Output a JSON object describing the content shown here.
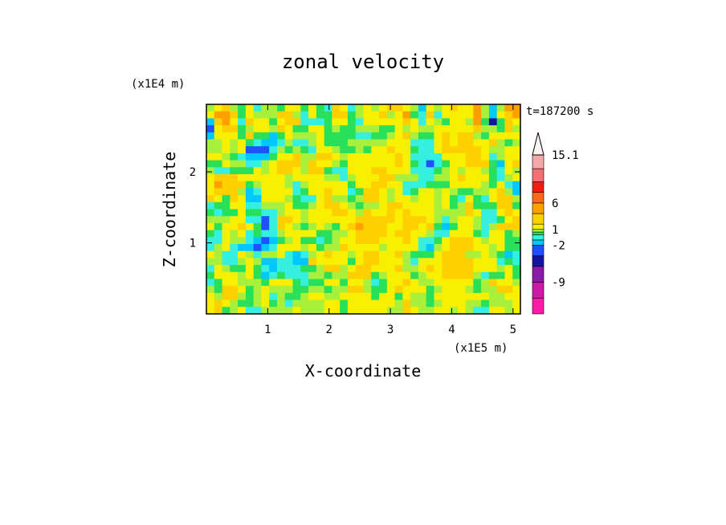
{
  "chart_data": {
    "type": "heatmap",
    "title": "zonal velocity",
    "xlabel": "X-coordinate",
    "ylabel": "Z-coordinate",
    "x_unit": "(x1E5 m)",
    "y_unit": "(x1E4 m)",
    "time_label": "t=187200 s",
    "xlim": [
      0,
      5.12
    ],
    "ylim": [
      0,
      2.95
    ],
    "x_ticks": [
      "1",
      "2",
      "3",
      "4",
      "5"
    ],
    "y_ticks": [
      "1",
      "2"
    ],
    "x_tick_values": [
      1,
      2,
      3,
      4,
      5
    ],
    "y_tick_values": [
      1,
      2
    ],
    "colorbar": {
      "levels": [
        -15,
        -12,
        -9,
        -6,
        -4,
        -2,
        -1,
        0,
        0.5,
        1,
        2,
        4,
        6,
        8,
        10,
        12.5,
        15.1
      ],
      "labels": [
        "15.1",
        "6",
        "1",
        "-2",
        "-9"
      ],
      "label_values": [
        15.1,
        6,
        1,
        -2,
        -9
      ],
      "colors": [
        "#ff1aa8",
        "#cc1aa8",
        "#8c1aa8",
        "#1414a0",
        "#2050ff",
        "#00c8ff",
        "#35f0e0",
        "#28e05a",
        "#a8f03c",
        "#f8f000",
        "#ffd000",
        "#ffa000",
        "#ff6a1a",
        "#ee1e10",
        "#f27070",
        "#f6a7a7"
      ],
      "max_arrow": true
    },
    "z": [
      [
        0.8,
        1.5,
        3.2,
        0.8,
        0.2,
        1.2,
        -0.7,
        0.8,
        0.7,
        0.4,
        1.2,
        1.2,
        0.3,
        1.2,
        0.3,
        -0.6,
        2.9,
        1.3,
        -0.8,
        0.9,
        1.5,
        0.6,
        1.5,
        2.0,
        2.3,
        1.8,
        0.5,
        -1.1,
        1.2,
        0.7,
        1.3,
        2.0,
        1.3,
        1.2,
        4.9,
        0.9,
        -1.9,
        0.5,
        4.0,
        5.1
      ],
      [
        1.4,
        4.1,
        4.6,
        2.1,
        0.1,
        1.8,
        0.8,
        0.8,
        0.6,
        2.1,
        2.1,
        0.9,
        -0.4,
        1.8,
        0.3,
        0.0,
        2.6,
        2.3,
        0.0,
        0.5,
        1.4,
        1.4,
        3.1,
        0.5,
        1.4,
        4.2,
        0.4,
        -0.6,
        2.5,
        -0.4,
        1.7,
        1.7,
        1.7,
        1.4,
        5.6,
        0.5,
        -2.0,
        1.8,
        3.2,
        4.9
      ],
      [
        -1.1,
        2.8,
        5.0,
        1.6,
        -0.1,
        3.0,
        1.5,
        1.4,
        0.4,
        1.5,
        2.3,
        2.2,
        -0.4,
        -0.5,
        -0.1,
        0.1,
        1.6,
        1.1,
        0.4,
        -0.4,
        1.0,
        1.0,
        1.0,
        1.6,
        1.0,
        3.1,
        1.3,
        -0.2,
        1.3,
        0.7,
        0.4,
        1.7,
        1.4,
        0.8,
        4.1,
        0.2,
        -4.2,
        0.2,
        2.0,
        1.9
      ],
      [
        -2.5,
        1.6,
        3.4,
        2.2,
        0.3,
        0.8,
        1.8,
        1.2,
        0.6,
        2.1,
        1.5,
        0.1,
        0.2,
        1.6,
        1.6,
        0.3,
        0.8,
        0.1,
        0.3,
        0.6,
        0.7,
        0.9,
        0.0,
        0.2,
        1.0,
        0.6,
        1.1,
        0.6,
        0.8,
        1.3,
        1.3,
        1.2,
        1.1,
        1.6,
        3.3,
        0.9,
        0.5,
        0.4,
        2.2,
        0.6
      ],
      [
        -1.9,
        1.2,
        1.8,
        1.4,
        0.2,
        2.3,
        0.1,
        0.2,
        -1.1,
        0.1,
        1.7,
        0.8,
        0.9,
        0.9,
        1.3,
        0.2,
        0.1,
        0.3,
        0.2,
        -0.7,
        -0.1,
        0.3,
        0.3,
        0.6,
        1.5,
        2.0,
        0.7,
        0.3,
        0.3,
        1.3,
        2.1,
        1.8,
        2.4,
        2.3,
        0.7,
        0.4,
        1.8,
        1.8,
        1.6,
        1.8
      ],
      [
        0.9,
        0.8,
        1.8,
        0.5,
        1.4,
        0.4,
        -1.0,
        -1.1,
        -1.3,
        -0.9,
        0.8,
        -0.2,
        -0.5,
        0.6,
        1.1,
        0.3,
        0.2,
        0.1,
        0.7,
        0.7,
        0.8,
        0.8,
        0.9,
        1.0,
        1.4,
        1.0,
        -0.1,
        -0.1,
        -0.8,
        1.5,
        3.6,
        1.6,
        3.4,
        2.5,
        1.7,
        1.1,
        2.1,
        0.8,
        0.0,
        0.5
      ],
      [
        0.5,
        0.6,
        1.4,
        0.6,
        1.8,
        -2.2,
        -2.5,
        -2.5,
        -0.3,
        0.7,
        0.4,
        0.9,
        0.4,
        -0.1,
        1.5,
        1.8,
        0.8,
        -0.0,
        0.0,
        0.9,
        0.4,
        1.0,
        1.4,
        2.1,
        1.7,
        1.7,
        0.4,
        -0.1,
        -0.9,
        1.5,
        3.1,
        3.8,
        2.1,
        2.3,
        3.1,
        1.6,
        0.8,
        0.5,
        1.5,
        1.5
      ],
      [
        1.3,
        1.4,
        0.6,
        -0.0,
        -0.4,
        -1.4,
        -2.0,
        -1.7,
        0.1,
        1.1,
        1.0,
        2.2,
        0.8,
        0.9,
        2.1,
        2.5,
        1.3,
        0.7,
        1.4,
        1.9,
        1.4,
        1.1,
        1.5,
        1.0,
        2.7,
        1.9,
        -0.4,
        -0.4,
        -0.6,
        -0.9,
        1.3,
        1.8,
        1.6,
        3.5,
        2.3,
        1.5,
        -0.3,
        0.7,
        1.1,
        1.6
      ],
      [
        0.1,
        0.4,
        1.7,
        0.6,
        0.5,
        -0.2,
        -0.9,
        0.5,
        1.8,
        2.2,
        2.8,
        2.0,
        0.9,
        3.3,
        1.9,
        1.4,
        0.8,
        0.1,
        1.9,
        1.8,
        1.3,
        1.4,
        1.3,
        1.4,
        2.3,
        1.3,
        0.3,
        -0.7,
        -2.5,
        -0.5,
        0.4,
        1.0,
        1.9,
        2.5,
        3.4,
        2.7,
        0.1,
        -1.1,
        1.6,
        2.3
      ],
      [
        0.6,
        -0.6,
        -0.6,
        0.4,
        0.2,
        0.1,
        1.9,
        0.9,
        1.2,
        2.3,
        2.4,
        1.4,
        0.6,
        3.0,
        2.0,
        0.4,
        -0.2,
        -0.4,
        1.2,
        1.3,
        1.5,
        2.1,
        2.2,
        1.7,
        1.0,
        1.1,
        -0.6,
        -0.4,
        -0.5,
        0.1,
        0.8,
        1.2,
        0.8,
        1.0,
        1.6,
        0.9,
        0.2,
        -0.5,
        1.5,
        0.7
      ],
      [
        1.7,
        3.2,
        2.8,
        3.1,
        1.7,
        1.5,
        1.1,
        1.4,
        1.7,
        1.4,
        0.5,
        1.1,
        1.4,
        1.3,
        1.3,
        0.6,
        0.6,
        -0.6,
        0.5,
        1.1,
        1.0,
        1.2,
        2.1,
        2.9,
        0.5,
        0.5,
        0.8,
        -0.6,
        -0.2,
        0.5,
        0.6,
        1.7,
        2.1,
        1.6,
        1.5,
        1.4,
        0.4,
        -0.5,
        0.5,
        1.1
      ],
      [
        1.8,
        5.4,
        2.5,
        2.2,
        2.9,
        0.4,
        0.5,
        1.7,
        1.1,
        1.5,
        0.6,
        -0.3,
        0.6,
        1.7,
        1.6,
        1.6,
        1.4,
        1.1,
        0.4,
        1.4,
        1.9,
        2.2,
        2.1,
        1.6,
        1.3,
        -0.3,
        -0.3,
        -0.6,
        0.4,
        0.3,
        0.1,
        1.3,
        1.7,
        1.3,
        1.2,
        0.8,
        0.4,
        1.8,
        -0.7,
        -1.1
      ],
      [
        1.3,
        3.3,
        3.2,
        2.8,
        0.5,
        -1.4,
        -0.3,
        1.7,
        1.3,
        1.6,
        1.1,
        -0.2,
        0.2,
        1.2,
        1.3,
        2.1,
        1.8,
        1.3,
        -0.2,
        0.3,
        2.7,
        2.4,
        1.1,
        0.7,
        1.0,
        -0.1,
        0.4,
        1.1,
        1.3,
        0.6,
        1.0,
        0.6,
        0.4,
        0.2,
        0.6,
        0.7,
        1.7,
        2.0,
        0.8,
        -1.1
      ],
      [
        2.9,
        1.7,
        0.1,
        2.2,
        1.3,
        -1.8,
        -1.5,
        1.2,
        1.4,
        1.9,
        0.5,
        0.0,
        -0.6,
        -0.2,
        1.0,
        2.3,
        0.9,
        0.7,
        -0.0,
        0.6,
        2.3,
        2.5,
        1.5,
        0.5,
        1.5,
        1.3,
        0.6,
        1.4,
        1.1,
        0.8,
        1.6,
        0.1,
        -0.6,
        1.0,
        -0.0,
        -0.4,
        1.1,
        2.2,
        2.0,
        0.6
      ],
      [
        -0.1,
        0.2,
        0.4,
        1.1,
        1.4,
        -0.3,
        -0.9,
        0.5,
        0.6,
        0.6,
        1.4,
        0.3,
        0.2,
        0.7,
        1.3,
        2.0,
        2.0,
        1.8,
        0.5,
        0.2,
        0.8,
        0.8,
        1.3,
        2.1,
        2.5,
        1.8,
        1.1,
        1.8,
        1.2,
        0.5,
        1.2,
        0.3,
        0.8,
        2.9,
        0.0,
        -0.0,
        0.4,
        3.1,
        2.9,
        0.2
      ],
      [
        0.1,
        -0.4,
        0.0,
        0.4,
        1.6,
        0.0,
        0.0,
        -0.4,
        -0.5,
        0.8,
        1.8,
        1.3,
        0.7,
        1.6,
        1.2,
        1.5,
        2.0,
        2.3,
        1.7,
        0.7,
        2.0,
        1.7,
        1.7,
        2.2,
        1.3,
        2.2,
        1.6,
        1.1,
        1.6,
        0.9,
        0.6,
        0.5,
        0.9,
        2.8,
        1.1,
        -0.4,
        -0.3,
        1.3,
        2.2,
        1.1
      ],
      [
        0.7,
        0.7,
        0.6,
        1.1,
        1.4,
        -0.1,
        -0.9,
        -2.5,
        -0.7,
        2.2,
        2.5,
        1.6,
        0.7,
        1.5,
        1.6,
        1.9,
        1.6,
        1.7,
        1.8,
        2.0,
        2.6,
        2.0,
        2.7,
        2.3,
        1.3,
        2.5,
        2.5,
        2.2,
        1.7,
        0.9,
        -0.2,
        0.9,
        1.8,
        1.0,
        0.8,
        -1.0,
        -0.8,
        -0.0,
        1.1,
        2.6
      ],
      [
        1.4,
        -0.0,
        1.4,
        1.3,
        2.4,
        1.3,
        0.1,
        -2.2,
        -0.1,
        2.0,
        1.7,
        0.7,
        0.3,
        0.8,
        1.1,
        0.7,
        0.3,
        1.0,
        2.3,
        4.2,
        3.3,
        2.7,
        2.5,
        1.6,
        1.1,
        2.1,
        2.2,
        1.9,
        2.0,
        0.4,
        -1.4,
        0.4,
        1.0,
        1.7,
        0.6,
        -0.5,
        0.5,
        2.2,
        2.5,
        2.0
      ],
      [
        0.3,
        -0.4,
        1.6,
        0.7,
        1.2,
        -0.1,
        0.4,
        -0.9,
        -0.5,
        0.9,
        1.0,
        1.2,
        1.2,
        1.4,
        0.1,
        0.0,
        0.5,
        0.5,
        1.8,
        3.7,
        3.3,
        3.6,
        2.5,
        1.5,
        2.0,
        2.0,
        1.3,
        1.0,
        0.6,
        -0.6,
        -0.6,
        1.4,
        1.6,
        1.5,
        0.4,
        -0.9,
        1.1,
        1.9,
        0.4,
        0.5
      ],
      [
        -0.7,
        -0.5,
        1.7,
        0.9,
        0.6,
        -1.0,
        -1.2,
        -3.8,
        -1.5,
        0.4,
        0.9,
        1.4,
        0.1,
        0.0,
        -0.2,
        0.2,
        0.7,
        1.4,
        1.8,
        2.3,
        2.2,
        2.3,
        1.0,
        1.2,
        1.9,
        2.0,
        1.5,
        -0.8,
        -0.8,
        0.3,
        1.0,
        2.5,
        3.3,
        2.6,
        1.5,
        0.5,
        1.1,
        1.4,
        0.3,
        0.0
      ],
      [
        -0.2,
        0.8,
        1.2,
        -1.0,
        -1.1,
        -1.7,
        -2.6,
        -1.7,
        -0.1,
        1.2,
        1.2,
        1.1,
        0.6,
        1.0,
        0.0,
        0.6,
        0.6,
        2.2,
        1.5,
        1.8,
        1.6,
        1.1,
        0.9,
        1.9,
        1.2,
        1.4,
        1.1,
        -0.4,
        -1.1,
        0.9,
        1.0,
        2.1,
        2.2,
        2.8,
        1.4,
        1.3,
        0.5,
        1.6,
        0.3,
        0.3
      ],
      [
        1.8,
        0.6,
        -0.3,
        -0.7,
        1.1,
        0.5,
        -0.4,
        0.6,
        0.7,
        1.0,
        -0.6,
        -1.2,
        -0.6,
        0.8,
        1.6,
        2.2,
        1.8,
        1.2,
        0.5,
        1.2,
        2.2,
        2.5,
        1.6,
        1.8,
        2.4,
        0.9,
        0.1,
        0.1,
        0.3,
        1.6,
        2.3,
        2.5,
        2.3,
        0.9,
        0.8,
        1.3,
        0.7,
        0.2,
        -1.3,
        -0.3
      ],
      [
        0.8,
        0.7,
        -0.5,
        -0.2,
        0.7,
        1.1,
        0.8,
        -1.2,
        -1.9,
        -0.3,
        -0.4,
        -1.1,
        -1.1,
        2.0,
        1.6,
        1.6,
        1.6,
        1.7,
        0.2,
        1.9,
        3.1,
        2.6,
        1.8,
        1.4,
        1.8,
        0.5,
        -0.1,
        1.0,
        1.6,
        1.0,
        2.2,
        2.1,
        2.6,
        2.2,
        1.1,
        1.4,
        1.5,
        -0.1,
        0.2,
        -0.3
      ],
      [
        -0.3,
        1.4,
        0.5,
        0.1,
        0.4,
        1.3,
        0.3,
        -0.7,
        -1.5,
        -0.6,
        -0.6,
        -1.0,
        0.1,
        0.1,
        0.9,
        2.1,
        2.1,
        0.9,
        1.3,
        2.4,
        2.5,
        1.1,
        1.4,
        1.5,
        2.2,
        0.8,
        0.5,
        1.1,
        2.0,
        1.5,
        2.4,
        2.0,
        3.7,
        2.2,
        1.0,
        1.3,
        1.6,
        0.7,
        1.5,
        0.4
      ],
      [
        0.4,
        1.1,
        1.2,
        1.6,
        0.8,
        1.1,
        0.1,
        -1.2,
        -0.4,
        0.4,
        -0.2,
        -1.0,
        -0.6,
        0.8,
        0.8,
        0.4,
        0.5,
        0.7,
        2.0,
        2.3,
        2.0,
        0.1,
        0.6,
        1.6,
        1.6,
        1.4,
        0.3,
        0.9,
        1.2,
        1.2,
        2.0,
        2.1,
        2.6,
        2.5,
        0.7,
        -0.2,
        0.3,
        0.3,
        1.1,
        -0.0
      ],
      [
        -0.4,
        0.4,
        1.4,
        1.7,
        0.8,
        0.6,
        0.6,
        0.3,
        1.1,
        1.8,
        1.0,
        0.3,
        -0.2,
        0.0,
        0.1,
        1.2,
        1.6,
        0.1,
        1.5,
        1.6,
        0.7,
        -0.5,
        0.1,
        1.3,
        1.3,
        2.8,
        1.9,
        0.9,
        0.6,
        1.1,
        1.6,
        1.6,
        1.8,
        1.1,
        0.4,
        0.6,
        2.0,
        1.3,
        1.4,
        0.8
      ],
      [
        0.9,
        0.1,
        2.9,
        2.4,
        1.2,
        0.2,
        0.7,
        1.0,
        0.5,
        0.6,
        0.8,
        0.1,
        0.3,
        0.5,
        0.9,
        0.3,
        0.8,
        0.9,
        2.0,
        2.3,
        0.7,
        -0.0,
        0.4,
        1.7,
        2.0,
        1.6,
        1.1,
        1.2,
        0.3,
        0.6,
        1.0,
        1.9,
        1.4,
        0.9,
        0.3,
        0.8,
        0.6,
        2.2,
        2.3,
        1.8
      ],
      [
        1.6,
        0.8,
        2.4,
        2.3,
        0.9,
        0.2,
        0.7,
        1.5,
        -0.1,
        0.5,
        0.4,
        0.4,
        0.6,
        1.0,
        1.3,
        0.6,
        0.6,
        1.4,
        1.6,
        1.6,
        1.4,
        0.1,
        1.4,
        1.8,
        0.4,
        1.1,
        0.7,
        0.5,
        0.3,
        1.4,
        1.6,
        1.4,
        1.1,
        1.4,
        1.2,
        1.6,
        0.6,
        0.8,
        1.4,
        1.6
      ],
      [
        1.8,
        2.6,
        1.9,
        0.8,
        0.1,
        0.4,
        0.7,
        1.0,
        0.4,
        0.5,
        -0.1,
        0.7,
        0.6,
        0.7,
        0.9,
        1.1,
        1.0,
        0.4,
        1.0,
        1.9,
        1.6,
        1.2,
        1.9,
        1.0,
        0.6,
        2.4,
        0.6,
        0.5,
        0.3,
        0.8,
        1.1,
        1.0,
        1.7,
        0.9,
        0.8,
        0.4,
        0.6,
        0.6,
        0.6,
        1.1
      ],
      [
        1.8,
        2.3,
        0.2,
        0.6,
        1.5,
        -0.2,
        -0.3,
        0.7,
        0.6,
        0.7,
        0.6,
        1.3,
        0.6,
        0.8,
        0.9,
        1.0,
        1.1,
        0.4,
        1.5,
        1.9,
        1.4,
        1.4,
        1.3,
        0.5,
        0.8,
        3.4,
        1.4,
        0.9,
        0.5,
        1.7,
        1.6,
        0.5,
        1.8,
        0.5,
        -0.4,
        -0.4,
        1.3,
        1.5,
        0.6,
        1.3
      ]
    ]
  }
}
